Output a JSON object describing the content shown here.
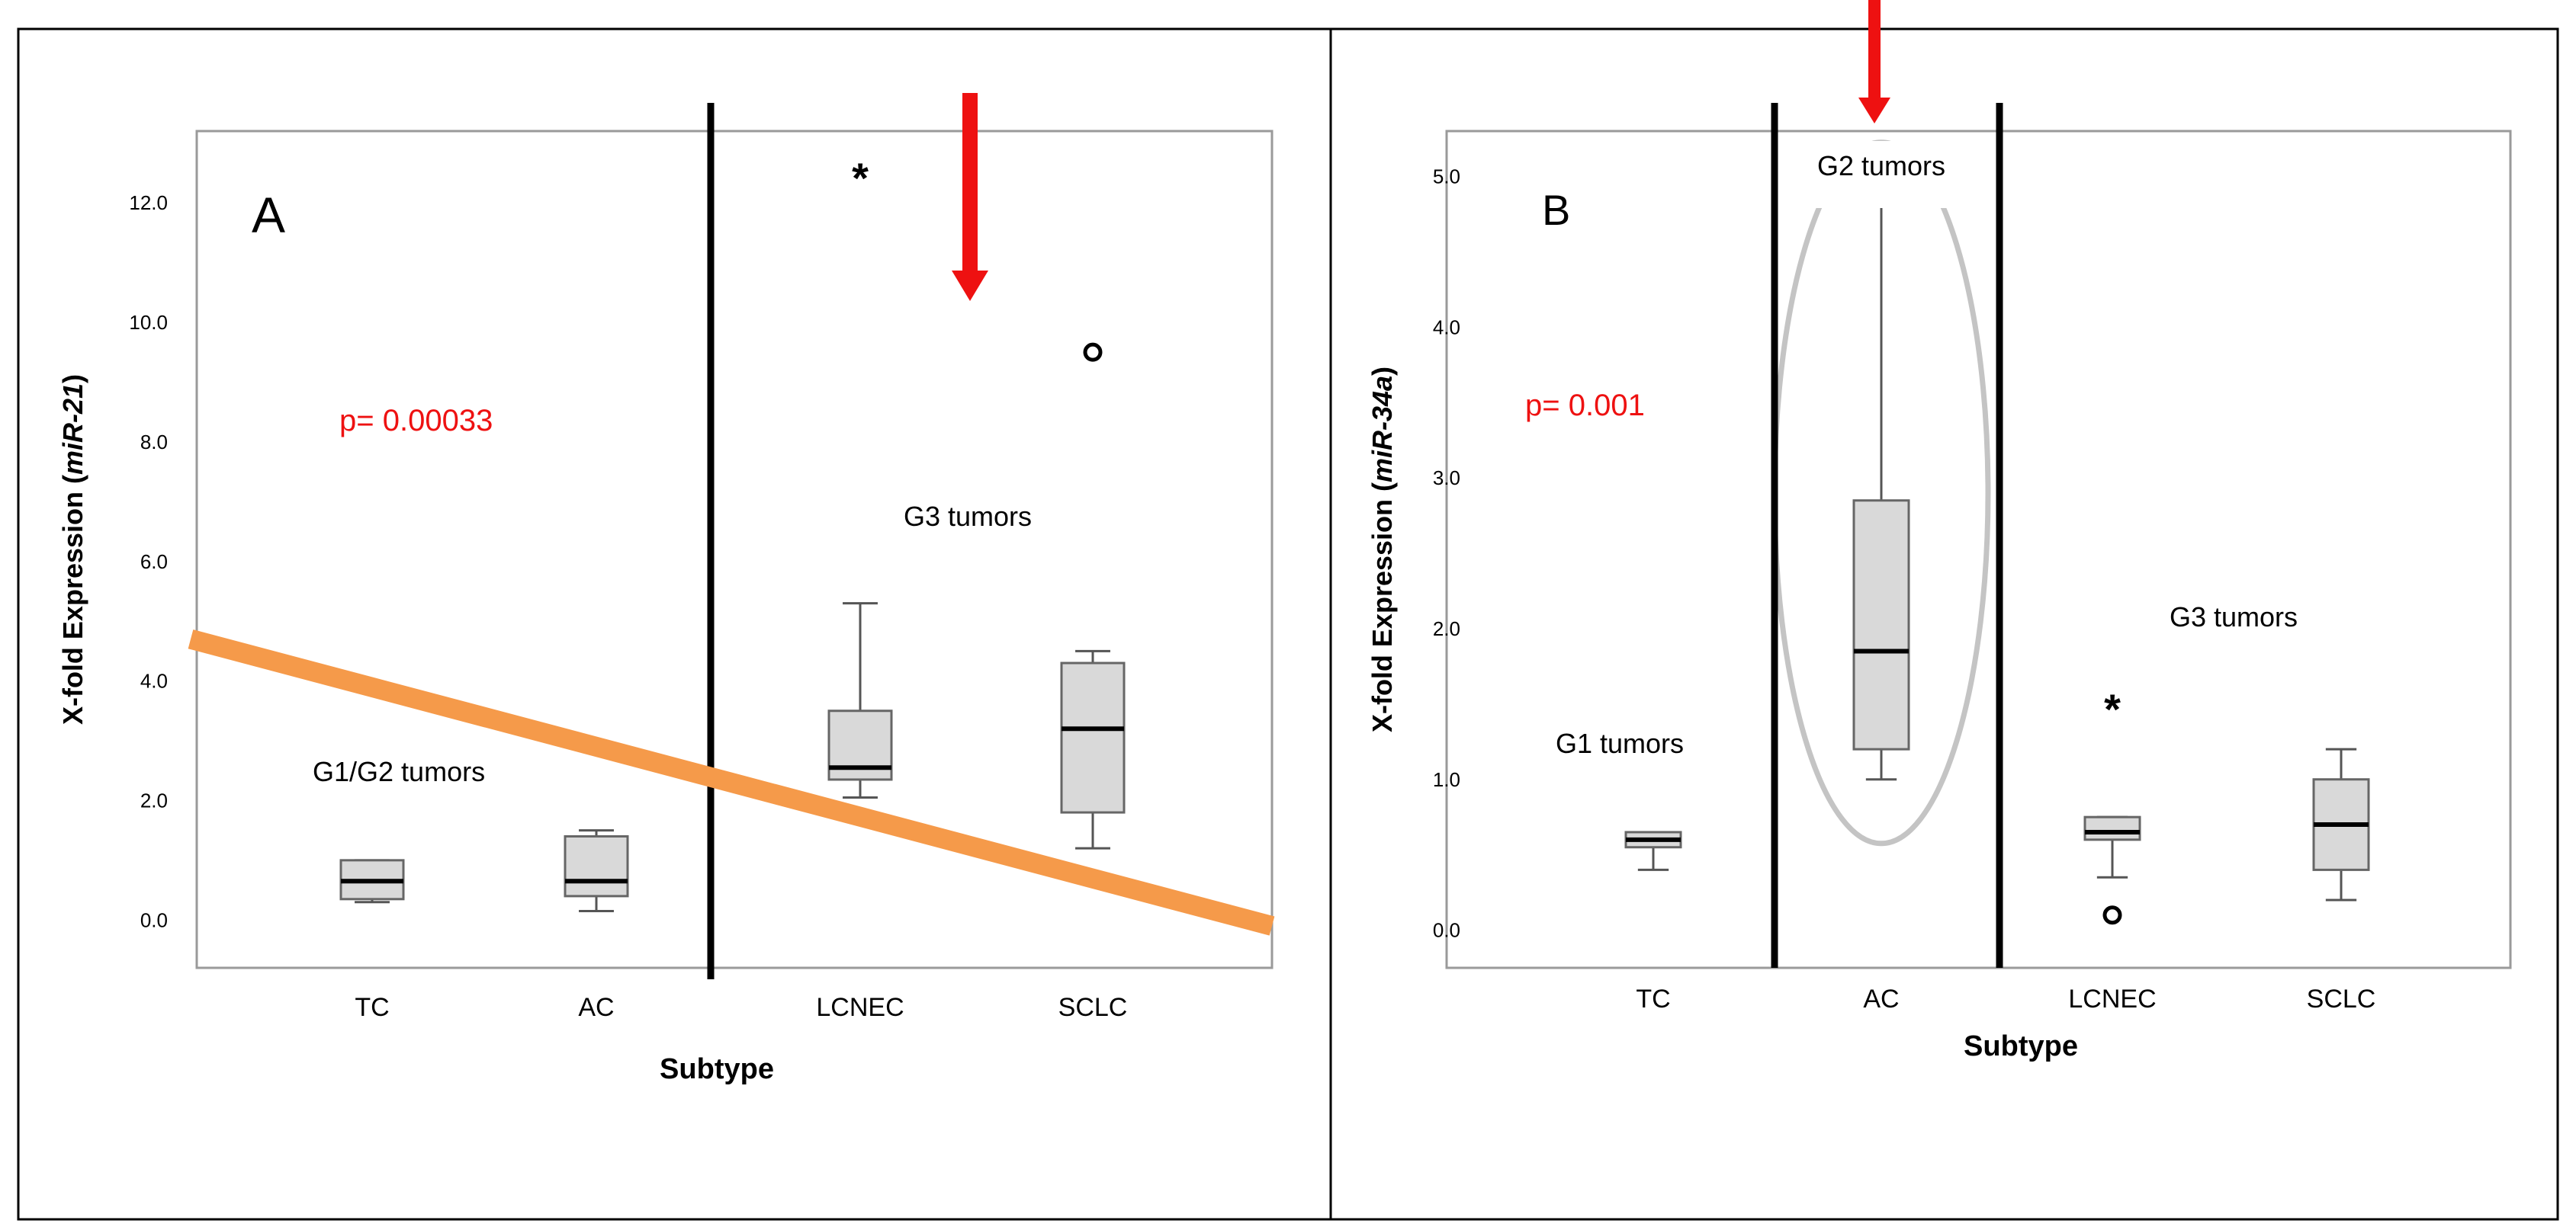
{
  "chart_data": [
    {
      "type": "box",
      "panel_label": "A",
      "xlabel": "Subtype",
      "ylabel_prefix": "X-fold Expression (",
      "ylabel_gene": "miR-21",
      "ylabel_suffix": ")",
      "ylim": [
        -0.8,
        13.2
      ],
      "yticks": [
        0,
        2,
        4,
        6,
        8,
        10,
        12
      ],
      "ytick_labels": [
        "0.0",
        "2.0",
        "4.0",
        "6.0",
        "8.0",
        "10.0",
        "12.0"
      ],
      "grid": false,
      "categories": [
        "TC",
        "AC",
        "LCNEC",
        "SCLC"
      ],
      "boxes": [
        {
          "category": "TC",
          "whisker_low": 0.3,
          "q1": 0.35,
          "median": 0.65,
          "q3": 1.0,
          "whisker_high": 1.0
        },
        {
          "category": "AC",
          "whisker_low": 0.15,
          "q1": 0.4,
          "median": 0.65,
          "q3": 1.4,
          "whisker_high": 1.5
        },
        {
          "category": "LCNEC",
          "whisker_low": 2.05,
          "q1": 2.35,
          "median": 2.55,
          "q3": 3.5,
          "whisker_high": 5.3
        },
        {
          "category": "SCLC",
          "whisker_low": 1.2,
          "q1": 1.8,
          "median": 3.2,
          "q3": 4.3,
          "whisker_high": 4.5
        }
      ],
      "outliers": [
        {
          "category": "LCNEC",
          "value": 12.5,
          "marker": "*"
        },
        {
          "category": "SCLC",
          "value": 9.5,
          "marker": "o"
        }
      ],
      "annotations": {
        "p_value": "p= 0.00033",
        "group_left": "G1/G2 tumors",
        "group_right": "G3 tumors"
      },
      "divider_between": [
        "AC",
        "LCNEC"
      ],
      "trend_line": {
        "color": "#f59a4a",
        "from_value": 4.7,
        "to_value": -0.1
      },
      "arrow": {
        "color": "#ee1111",
        "category_position": 3.5
      }
    },
    {
      "type": "box",
      "panel_label": "B",
      "xlabel": "Subtype",
      "ylabel_prefix": "X-fold Expression (",
      "ylabel_gene": "miR-34a",
      "ylabel_suffix": ")",
      "ylim": [
        -0.25,
        5.3
      ],
      "yticks": [
        0,
        1,
        2,
        3,
        4,
        5
      ],
      "ytick_labels": [
        "0.0",
        "1.0",
        "2.0",
        "3.0",
        "4.0",
        "5.0"
      ],
      "grid": false,
      "categories": [
        "TC",
        "AC",
        "LCNEC",
        "SCLC"
      ],
      "boxes": [
        {
          "category": "TC",
          "whisker_low": 0.4,
          "q1": 0.55,
          "median": 0.6,
          "q3": 0.65,
          "whisker_high": 0.65
        },
        {
          "category": "AC",
          "whisker_low": 1.0,
          "q1": 1.2,
          "median": 1.85,
          "q3": 2.85,
          "whisker_high": 4.8
        },
        {
          "category": "LCNEC",
          "whisker_low": 0.35,
          "q1": 0.6,
          "median": 0.65,
          "q3": 0.75,
          "whisker_high": 0.75
        },
        {
          "category": "SCLC",
          "whisker_low": 0.2,
          "q1": 0.4,
          "median": 0.7,
          "q3": 1.0,
          "whisker_high": 1.2
        }
      ],
      "outliers": [
        {
          "category": "LCNEC",
          "value": 1.5,
          "marker": "*"
        },
        {
          "category": "LCNEC",
          "value": 0.1,
          "marker": "o"
        }
      ],
      "annotations": {
        "p_value": "p= 0.001",
        "group_left": "G1 tumors",
        "group_middle": "G2 tumors",
        "group_right": "G3 tumors"
      },
      "dividers_around": "AC",
      "highlight_ellipse_category": "AC",
      "arrow": {
        "color": "#ee1111",
        "category": "AC"
      }
    }
  ]
}
